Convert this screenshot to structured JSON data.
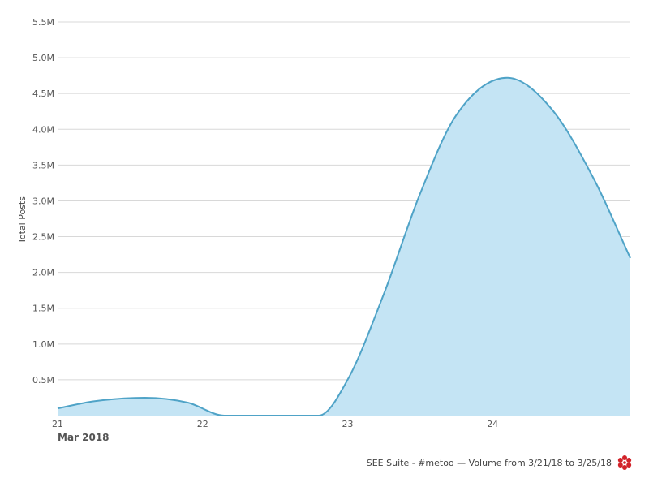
{
  "chart_data": {
    "type": "area",
    "ylabel": "Total Posts",
    "x_group_label": "Mar 2018",
    "x_tick_labels": [
      "21",
      "22",
      "23",
      "24"
    ],
    "y_tick_labels": [
      "0.5M",
      "1.0M",
      "1.5M",
      "2.0M",
      "2.5M",
      "3.0M",
      "3.5M",
      "4.0M",
      "4.5M",
      "5.0M",
      "5.5M"
    ],
    "y_tick_values": [
      500000,
      1000000,
      1500000,
      2000000,
      2500000,
      3000000,
      3500000,
      4000000,
      4500000,
      5000000,
      5500000
    ],
    "ylim": [
      0,
      5500000
    ],
    "xlim": [
      21,
      24.95
    ],
    "grid": true,
    "series": [
      {
        "x": [
          21,
          21.25,
          21.6,
          21.9,
          22.15,
          22.5,
          22.8,
          23.0,
          23.25,
          23.5,
          23.75,
          24.1,
          24.4,
          24.7,
          24.95
        ],
        "values": [
          100000,
          200000,
          250000,
          180000,
          0,
          0,
          0,
          500000,
          1700000,
          3100000,
          4200000,
          4720000,
          4300000,
          3300000,
          2200000
        ]
      }
    ],
    "colors": {
      "line": "#4fa3c7",
      "fill": "#c4e4f4",
      "grid": "#d8d8d8"
    }
  },
  "footer": {
    "text": "SEE Suite - #metoo — Volume from 3/21/18 to 3/25/18",
    "logo_icon": "flower-logo-icon",
    "logo_color": "#d2232a"
  }
}
